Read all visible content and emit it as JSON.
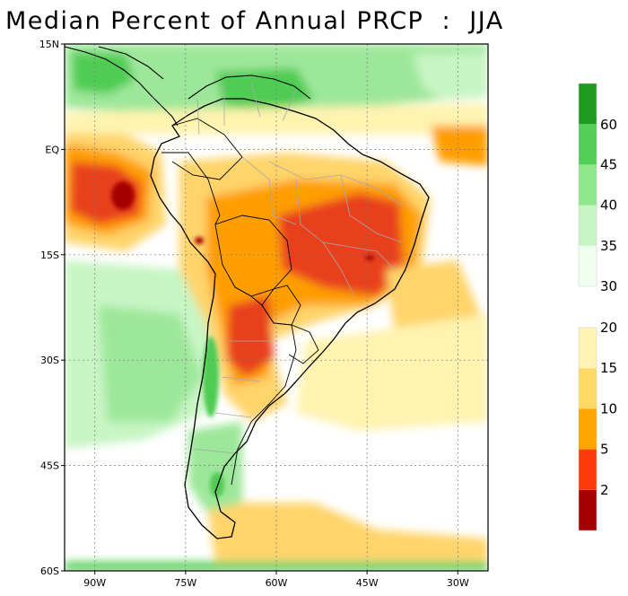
{
  "title": "Median Percent of Annual PRCP  :  JJA",
  "map": {
    "lat_labels": [
      "15N",
      "EQ",
      "15S",
      "30S",
      "45S",
      "60S"
    ],
    "lat_values": [
      15,
      0,
      -15,
      -30,
      -45,
      -60
    ],
    "lon_labels": [
      "90W",
      "75W",
      "60W",
      "45W",
      "30W"
    ],
    "lon_values": [
      -90,
      -75,
      -60,
      -45,
      -30
    ],
    "lon_range": [
      -95,
      -25
    ],
    "lat_range": [
      -60,
      15
    ],
    "gridlines": true
  },
  "colorbar_upper": {
    "labels": [
      "30",
      "35",
      "40",
      "45",
      "60"
    ],
    "colors": [
      "#f0fff0",
      "#c8f5c4",
      "#8ce88a",
      "#52cf54",
      "#1e9b1e"
    ]
  },
  "colorbar_lower": {
    "labels": [
      "2",
      "5",
      "10",
      "15",
      "20"
    ],
    "colors": [
      "#a50000",
      "#ff3a0a",
      "#ffa500",
      "#ffd966",
      "#fff4b3"
    ]
  },
  "palette": {
    "dark_red": "#a50000",
    "red": "#e8401a",
    "orange": "#ff9e00",
    "light_orange": "#ffd46a",
    "pale_yellow": "#fff3b0",
    "pale_green": "#dcf8d6",
    "light_green": "#9de79a",
    "green": "#4fcc52",
    "dark_green": "#1e9b1e",
    "land_gray": "#d0d0d0"
  }
}
